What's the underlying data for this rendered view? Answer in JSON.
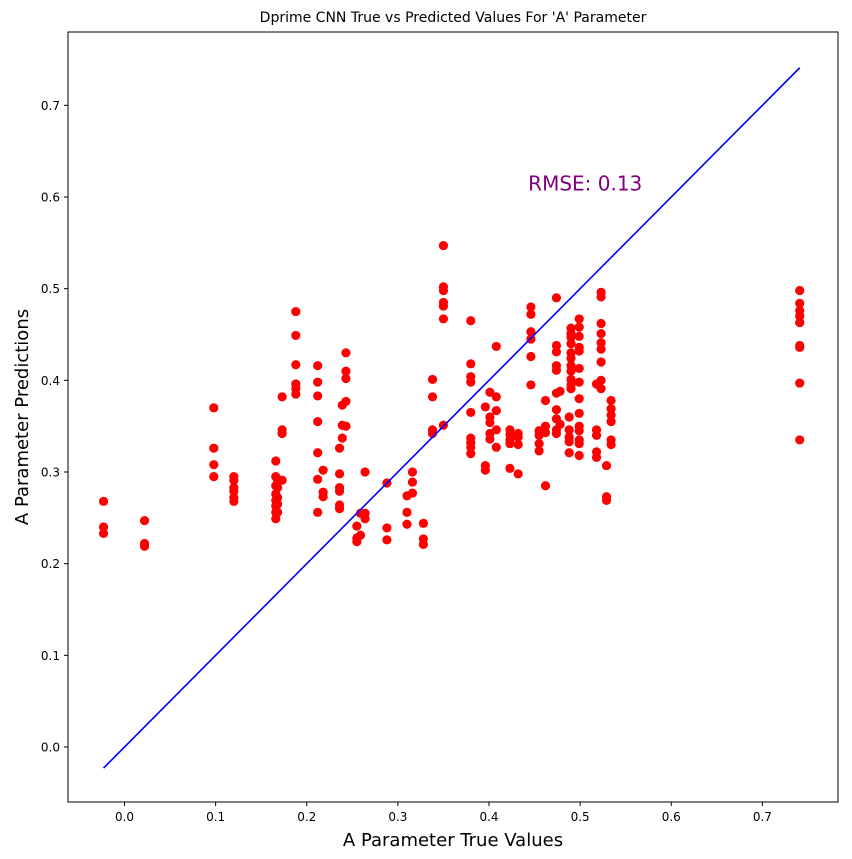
{
  "chart_data": {
    "type": "scatter",
    "title": "Dprime CNN True vs Predicted Values For 'A' Parameter",
    "xlabel": "A Parameter True Values",
    "ylabel": "A Parameter Predictions",
    "xlim": [
      -0.062,
      0.783
    ],
    "ylim": [
      -0.06,
      0.78
    ],
    "xticks": [
      0.0,
      0.1,
      0.2,
      0.3,
      0.4,
      0.5,
      0.6,
      0.7
    ],
    "xtick_labels": [
      "0.0",
      "0.1",
      "0.2",
      "0.3",
      "0.4",
      "0.5",
      "0.6",
      "0.7"
    ],
    "yticks": [
      0.0,
      0.1,
      0.2,
      0.3,
      0.4,
      0.5,
      0.6,
      0.7
    ],
    "ytick_labels": [
      "0.0",
      "0.1",
      "0.2",
      "0.3",
      "0.4",
      "0.5",
      "0.6",
      "0.7"
    ],
    "grid": false,
    "annotation": {
      "text": "RMSE: 0.13",
      "x": 0.443,
      "y": 0.607,
      "color": "#800080"
    },
    "series": [
      {
        "type": "scatter",
        "color": "#ff0000",
        "points": [
          [
            -0.023,
            0.268
          ],
          [
            -0.023,
            0.24
          ],
          [
            -0.023,
            0.233
          ],
          [
            0.022,
            0.247
          ],
          [
            0.022,
            0.222
          ],
          [
            0.022,
            0.219
          ],
          [
            0.098,
            0.37
          ],
          [
            0.098,
            0.326
          ],
          [
            0.098,
            0.308
          ],
          [
            0.098,
            0.295
          ],
          [
            0.12,
            0.295
          ],
          [
            0.12,
            0.291
          ],
          [
            0.12,
            0.283
          ],
          [
            0.12,
            0.279
          ],
          [
            0.12,
            0.272
          ],
          [
            0.12,
            0.268
          ],
          [
            0.166,
            0.312
          ],
          [
            0.166,
            0.295
          ],
          [
            0.166,
            0.285
          ],
          [
            0.166,
            0.276
          ],
          [
            0.166,
            0.269
          ],
          [
            0.166,
            0.263
          ],
          [
            0.166,
            0.256
          ],
          [
            0.166,
            0.249
          ],
          [
            0.168,
            0.291
          ],
          [
            0.168,
            0.283
          ],
          [
            0.168,
            0.272
          ],
          [
            0.168,
            0.265
          ],
          [
            0.168,
            0.256
          ],
          [
            0.173,
            0.382
          ],
          [
            0.173,
            0.346
          ],
          [
            0.173,
            0.342
          ],
          [
            0.173,
            0.291
          ],
          [
            0.188,
            0.475
          ],
          [
            0.188,
            0.449
          ],
          [
            0.188,
            0.417
          ],
          [
            0.188,
            0.396
          ],
          [
            0.188,
            0.391
          ],
          [
            0.188,
            0.385
          ],
          [
            0.212,
            0.416
          ],
          [
            0.212,
            0.398
          ],
          [
            0.212,
            0.383
          ],
          [
            0.212,
            0.355
          ],
          [
            0.212,
            0.321
          ],
          [
            0.212,
            0.292
          ],
          [
            0.212,
            0.256
          ],
          [
            0.218,
            0.302
          ],
          [
            0.218,
            0.278
          ],
          [
            0.218,
            0.273
          ],
          [
            0.236,
            0.326
          ],
          [
            0.236,
            0.298
          ],
          [
            0.236,
            0.283
          ],
          [
            0.236,
            0.279
          ],
          [
            0.236,
            0.264
          ],
          [
            0.236,
            0.26
          ],
          [
            0.239,
            0.373
          ],
          [
            0.239,
            0.351
          ],
          [
            0.239,
            0.337
          ],
          [
            0.243,
            0.43
          ],
          [
            0.243,
            0.41
          ],
          [
            0.243,
            0.402
          ],
          [
            0.243,
            0.377
          ],
          [
            0.243,
            0.35
          ],
          [
            0.255,
            0.241
          ],
          [
            0.255,
            0.228
          ],
          [
            0.255,
            0.224
          ],
          [
            0.259,
            0.255
          ],
          [
            0.259,
            0.231
          ],
          [
            0.264,
            0.3
          ],
          [
            0.264,
            0.255
          ],
          [
            0.264,
            0.249
          ],
          [
            0.288,
            0.288
          ],
          [
            0.288,
            0.239
          ],
          [
            0.288,
            0.226
          ],
          [
            0.31,
            0.274
          ],
          [
            0.31,
            0.256
          ],
          [
            0.31,
            0.243
          ],
          [
            0.316,
            0.3
          ],
          [
            0.316,
            0.289
          ],
          [
            0.316,
            0.277
          ],
          [
            0.328,
            0.244
          ],
          [
            0.328,
            0.227
          ],
          [
            0.328,
            0.221
          ],
          [
            0.338,
            0.401
          ],
          [
            0.338,
            0.382
          ],
          [
            0.338,
            0.346
          ],
          [
            0.338,
            0.342
          ],
          [
            0.35,
            0.547
          ],
          [
            0.35,
            0.502
          ],
          [
            0.35,
            0.498
          ],
          [
            0.35,
            0.485
          ],
          [
            0.35,
            0.481
          ],
          [
            0.35,
            0.467
          ],
          [
            0.35,
            0.351
          ],
          [
            0.38,
            0.465
          ],
          [
            0.38,
            0.418
          ],
          [
            0.38,
            0.404
          ],
          [
            0.38,
            0.398
          ],
          [
            0.38,
            0.365
          ],
          [
            0.38,
            0.337
          ],
          [
            0.38,
            0.332
          ],
          [
            0.38,
            0.327
          ],
          [
            0.38,
            0.32
          ],
          [
            0.396,
            0.371
          ],
          [
            0.396,
            0.307
          ],
          [
            0.396,
            0.302
          ],
          [
            0.401,
            0.387
          ],
          [
            0.401,
            0.36
          ],
          [
            0.401,
            0.354
          ],
          [
            0.401,
            0.342
          ],
          [
            0.401,
            0.336
          ],
          [
            0.408,
            0.437
          ],
          [
            0.408,
            0.382
          ],
          [
            0.408,
            0.367
          ],
          [
            0.408,
            0.346
          ],
          [
            0.408,
            0.327
          ],
          [
            0.423,
            0.346
          ],
          [
            0.423,
            0.341
          ],
          [
            0.423,
            0.335
          ],
          [
            0.423,
            0.331
          ],
          [
            0.423,
            0.304
          ],
          [
            0.432,
            0.342
          ],
          [
            0.432,
            0.338
          ],
          [
            0.432,
            0.33
          ],
          [
            0.432,
            0.298
          ],
          [
            0.446,
            0.48
          ],
          [
            0.446,
            0.472
          ],
          [
            0.446,
            0.453
          ],
          [
            0.446,
            0.445
          ],
          [
            0.446,
            0.426
          ],
          [
            0.446,
            0.395
          ],
          [
            0.455,
            0.345
          ],
          [
            0.455,
            0.34
          ],
          [
            0.455,
            0.331
          ],
          [
            0.455,
            0.323
          ],
          [
            0.462,
            0.378
          ],
          [
            0.462,
            0.35
          ],
          [
            0.462,
            0.343
          ],
          [
            0.462,
            0.285
          ],
          [
            0.474,
            0.49
          ],
          [
            0.474,
            0.438
          ],
          [
            0.474,
            0.431
          ],
          [
            0.474,
            0.416
          ],
          [
            0.474,
            0.411
          ],
          [
            0.474,
            0.386
          ],
          [
            0.474,
            0.368
          ],
          [
            0.474,
            0.358
          ],
          [
            0.474,
            0.346
          ],
          [
            0.474,
            0.342
          ],
          [
            0.478,
            0.388
          ],
          [
            0.478,
            0.352
          ],
          [
            0.488,
            0.36
          ],
          [
            0.488,
            0.346
          ],
          [
            0.488,
            0.338
          ],
          [
            0.488,
            0.333
          ],
          [
            0.488,
            0.321
          ],
          [
            0.49,
            0.457
          ],
          [
            0.49,
            0.451
          ],
          [
            0.49,
            0.447
          ],
          [
            0.49,
            0.44
          ],
          [
            0.49,
            0.43
          ],
          [
            0.49,
            0.424
          ],
          [
            0.49,
            0.416
          ],
          [
            0.49,
            0.41
          ],
          [
            0.49,
            0.401
          ],
          [
            0.49,
            0.395
          ],
          [
            0.49,
            0.391
          ],
          [
            0.499,
            0.467
          ],
          [
            0.499,
            0.458
          ],
          [
            0.499,
            0.448
          ],
          [
            0.499,
            0.436
          ],
          [
            0.499,
            0.432
          ],
          [
            0.499,
            0.413
          ],
          [
            0.499,
            0.398
          ],
          [
            0.499,
            0.38
          ],
          [
            0.499,
            0.364
          ],
          [
            0.499,
            0.35
          ],
          [
            0.499,
            0.345
          ],
          [
            0.499,
            0.335
          ],
          [
            0.499,
            0.331
          ],
          [
            0.499,
            0.318
          ],
          [
            0.518,
            0.396
          ],
          [
            0.518,
            0.346
          ],
          [
            0.518,
            0.34
          ],
          [
            0.518,
            0.322
          ],
          [
            0.518,
            0.316
          ],
          [
            0.523,
            0.496
          ],
          [
            0.523,
            0.491
          ],
          [
            0.523,
            0.462
          ],
          [
            0.523,
            0.451
          ],
          [
            0.523,
            0.441
          ],
          [
            0.523,
            0.434
          ],
          [
            0.523,
            0.42
          ],
          [
            0.523,
            0.4
          ],
          [
            0.523,
            0.391
          ],
          [
            0.529,
            0.307
          ],
          [
            0.529,
            0.273
          ],
          [
            0.529,
            0.269
          ],
          [
            0.534,
            0.378
          ],
          [
            0.534,
            0.369
          ],
          [
            0.534,
            0.362
          ],
          [
            0.534,
            0.355
          ],
          [
            0.534,
            0.335
          ],
          [
            0.534,
            0.33
          ],
          [
            0.741,
            0.498
          ],
          [
            0.741,
            0.484
          ],
          [
            0.741,
            0.476
          ],
          [
            0.741,
            0.47
          ],
          [
            0.741,
            0.463
          ],
          [
            0.741,
            0.438
          ],
          [
            0.741,
            0.436
          ],
          [
            0.741,
            0.397
          ],
          [
            0.741,
            0.335
          ]
        ]
      },
      {
        "type": "line",
        "color": "#0000ff",
        "points": [
          [
            -0.023,
            -0.023
          ],
          [
            0.741,
            0.741
          ]
        ]
      }
    ]
  }
}
